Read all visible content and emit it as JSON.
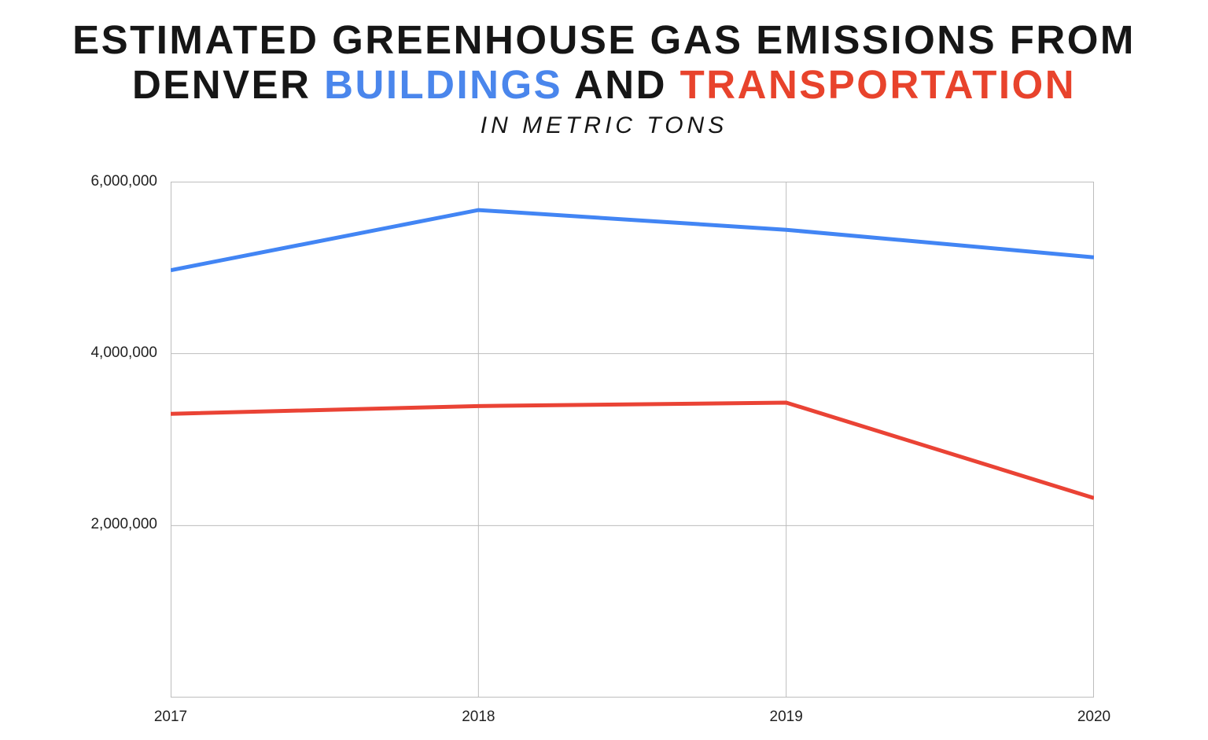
{
  "header": {
    "title_line1": "ESTIMATED GREENHOUSE GAS EMISSIONS FROM",
    "title_line2": {
      "word1": "DENVER",
      "word2": "BUILDINGS",
      "word3": "AND",
      "word4": "TRANSPORTATION"
    },
    "subtitle": "IN METRIC TONS",
    "accent_colors": {
      "title_text": "#161616",
      "buildings": "#4a86ec",
      "transportation": "#e8432c"
    }
  },
  "chart_data": {
    "type": "line",
    "title": "Estimated Greenhouse Gas Emissions from Denver Buildings and Transportation",
    "subtitle": "In Metric Tons",
    "categories": [
      "2017",
      "2018",
      "2019",
      "2020"
    ],
    "series": [
      {
        "name": "Buildings",
        "color": "#4285f4",
        "values": [
          4970000,
          5670000,
          5440000,
          5120000
        ]
      },
      {
        "name": "Transportation",
        "color": "#ea4335",
        "values": [
          3300000,
          3390000,
          3430000,
          2320000
        ]
      }
    ],
    "xlabel": "",
    "ylabel": "",
    "ylim": [
      0,
      6000000
    ],
    "yticks": [
      {
        "value": 6000000,
        "label": "6,000,000"
      },
      {
        "value": 4000000,
        "label": "4,000,000"
      },
      {
        "value": 2000000,
        "label": "2,000,000"
      }
    ],
    "grid": true,
    "legend": "none",
    "gridline_color": "#bdbdbd",
    "tick_label_color": "#222222",
    "line_width": 5
  }
}
